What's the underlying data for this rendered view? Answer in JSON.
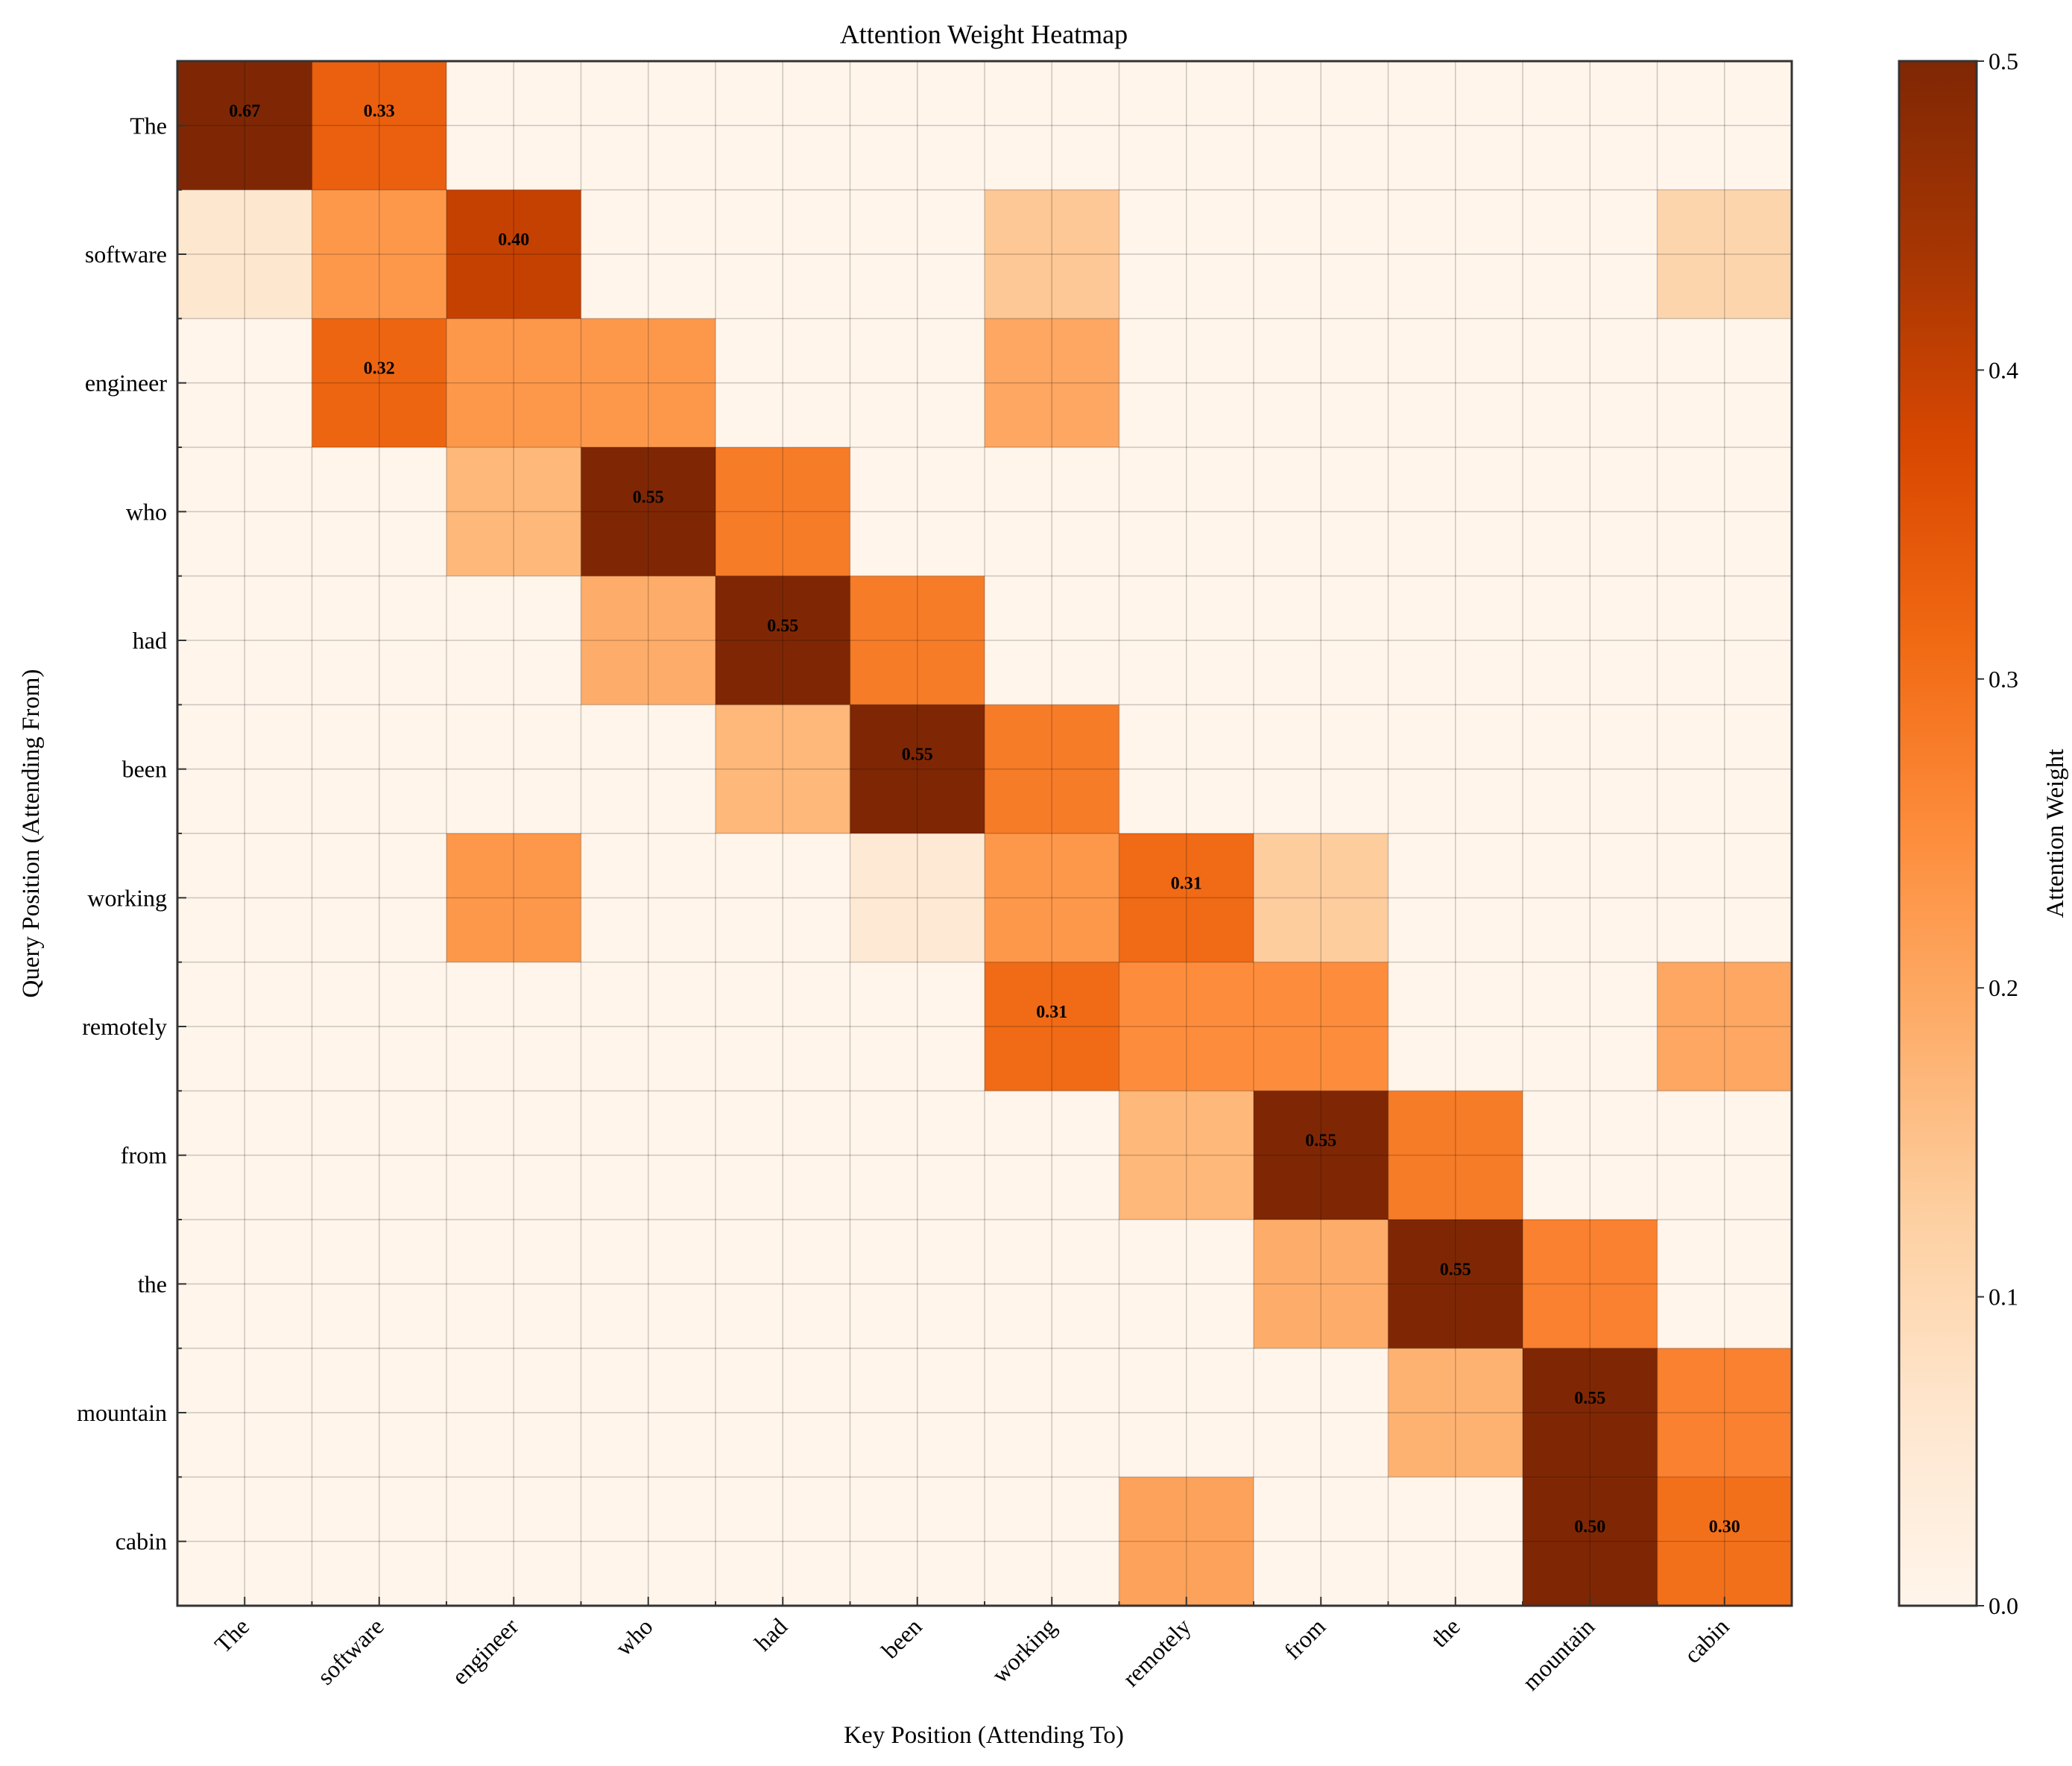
{
  "chart_data": {
    "type": "heatmap",
    "title": "Attention Weight Heatmap",
    "xlabel": "Key Position (Attending To)",
    "ylabel": "Query Position (Attending From)",
    "x_labels": [
      "The",
      "software",
      "engineer",
      "who",
      "had",
      "been",
      "working",
      "remotely",
      "from",
      "the",
      "mountain",
      "cabin"
    ],
    "y_labels": [
      "The",
      "software",
      "engineer",
      "who",
      "had",
      "been",
      "working",
      "remotely",
      "from",
      "the",
      "mountain",
      "cabin"
    ],
    "values": [
      [
        0.67,
        0.33,
        0,
        0,
        0,
        0,
        0,
        0,
        0,
        0,
        0,
        0
      ],
      [
        0.06,
        0.23,
        0.4,
        0,
        0,
        0,
        0.14,
        0,
        0,
        0,
        0,
        0.11
      ],
      [
        0,
        0.32,
        0.23,
        0.23,
        0,
        0,
        0.2,
        0,
        0,
        0,
        0,
        0
      ],
      [
        0,
        0,
        0.17,
        0.55,
        0.28,
        0,
        0,
        0,
        0,
        0,
        0,
        0
      ],
      [
        0,
        0,
        0,
        0.19,
        0.55,
        0.28,
        0,
        0,
        0,
        0,
        0,
        0
      ],
      [
        0,
        0,
        0,
        0,
        0.17,
        0.55,
        0.28,
        0,
        0,
        0,
        0,
        0
      ],
      [
        0,
        0,
        0.23,
        0,
        0,
        0.05,
        0.23,
        0.31,
        0.13,
        0,
        0,
        0
      ],
      [
        0,
        0,
        0,
        0,
        0,
        0,
        0.31,
        0.25,
        0.25,
        0,
        0,
        0.2
      ],
      [
        0,
        0,
        0,
        0,
        0,
        0,
        0,
        0.17,
        0.55,
        0.28,
        0,
        0
      ],
      [
        0,
        0,
        0,
        0,
        0,
        0,
        0,
        0,
        0.19,
        0.55,
        0.27,
        0
      ],
      [
        0,
        0,
        0,
        0,
        0,
        0,
        0,
        0,
        0,
        0.18,
        0.55,
        0.27
      ],
      [
        0,
        0,
        0,
        0,
        0,
        0,
        0,
        0.21,
        0,
        0,
        0.5,
        0.3
      ]
    ],
    "annotation_threshold": 0.3,
    "colormap": "Oranges",
    "colorbar": {
      "label": "Attention Weight",
      "vmin": 0.0,
      "vmax": 0.5,
      "ticks": [
        "0.0",
        "0.1",
        "0.2",
        "0.3",
        "0.4",
        "0.5"
      ]
    },
    "grid": true
  }
}
